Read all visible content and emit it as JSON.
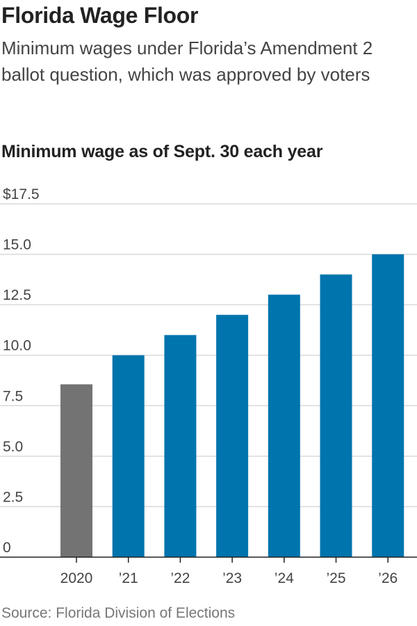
{
  "header": {
    "title": "Florida Wage Floor",
    "subtitle": "Minimum wages under Florida’s Amendment 2 ballot question, which was approved by voters"
  },
  "footer": {
    "source": "Source: Florida Division of Elections"
  },
  "colors": {
    "historical": "#737373",
    "scheduled": "#0074ad",
    "grid": "#d9d9d9",
    "axis": "#222222"
  },
  "chart_data": {
    "type": "bar",
    "title": "Minimum wage as of Sept. 30 each year",
    "xlabel": "",
    "ylabel": "",
    "categories": [
      "2020",
      "’21",
      "’22",
      "’23",
      "’24",
      "’25",
      "’26"
    ],
    "values": [
      8.56,
      10,
      11,
      12,
      13,
      14,
      15
    ],
    "bar_colors": [
      "#737373",
      "#0074ad",
      "#0074ad",
      "#0074ad",
      "#0074ad",
      "#0074ad",
      "#0074ad"
    ],
    "ylim": [
      0,
      17.5
    ],
    "yticks": [
      0,
      2.5,
      5,
      7.5,
      10,
      12.5,
      15,
      17.5
    ],
    "ytick_labels": [
      "0",
      "2.5",
      "5.0",
      "7.5",
      "10.0",
      "12.5",
      "15.0",
      "$17.5"
    ],
    "grid": true,
    "legend": "none"
  }
}
